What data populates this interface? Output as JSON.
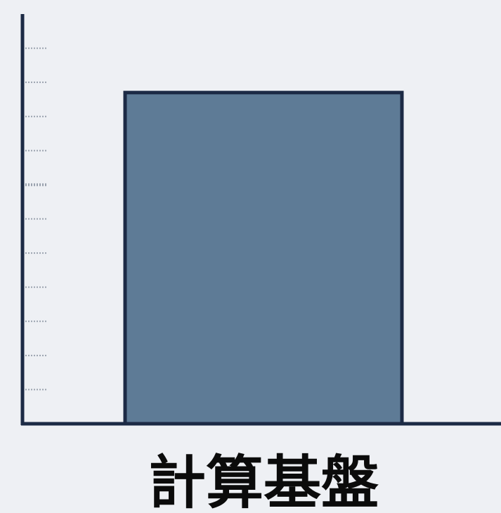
{
  "chart_data": {
    "type": "bar",
    "categories": [
      "計算基盤"
    ],
    "values": [
      9.7
    ],
    "ylim": [
      0,
      12
    ],
    "y_ticks": [
      1,
      2,
      3,
      4,
      5,
      6,
      7,
      8,
      9,
      10,
      11
    ],
    "y_tick_labels_visible": false,
    "grid": false,
    "legend": "none",
    "title": "",
    "xlabel": "",
    "ylabel": ""
  },
  "colors": {
    "background": "#eef0f4",
    "bar_fill": "#5e7b96",
    "bar_stroke": "#1c2a45",
    "axis": "#1c2a45",
    "label_text": "#0b0b0b"
  }
}
